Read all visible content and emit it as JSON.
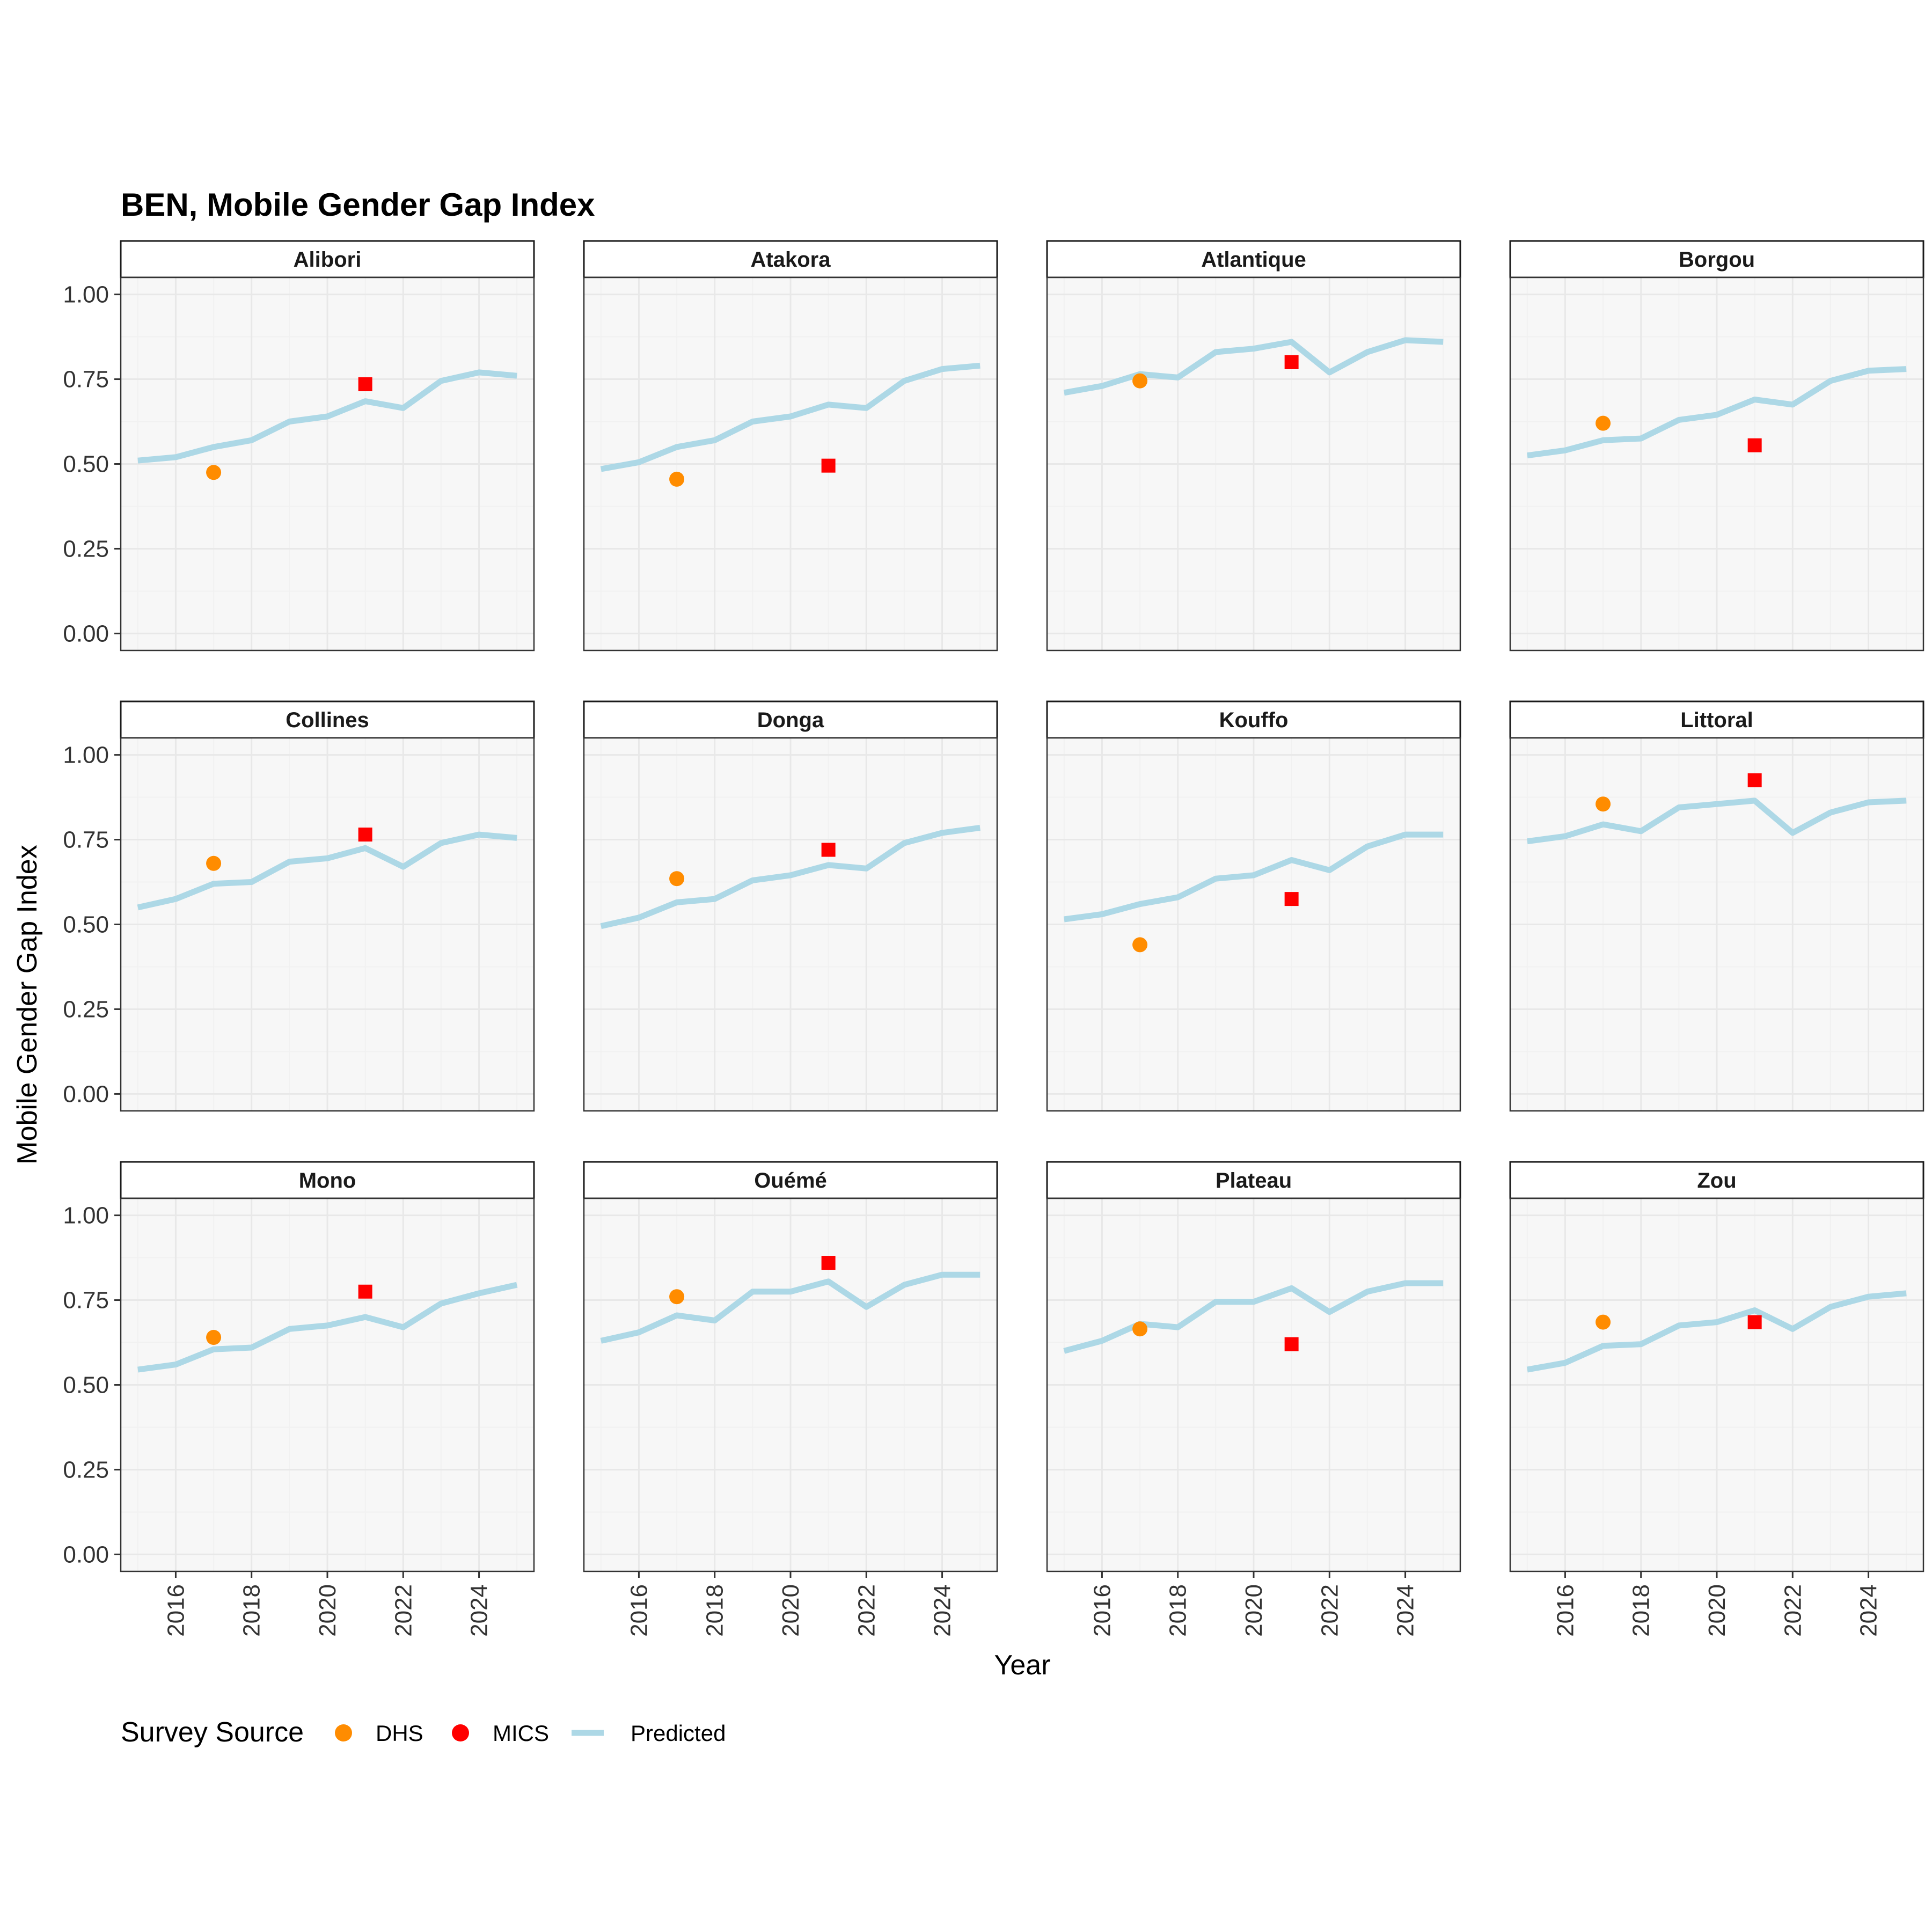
{
  "chart_data": {
    "type": "line",
    "title": "BEN, Mobile Gender Gap Index",
    "xlabel": "Year",
    "ylabel": "Mobile Gender Gap Index",
    "xlim": [
      2014.55,
      2025.45
    ],
    "ylim": [
      -0.05,
      1.05
    ],
    "x_ticks": [
      2016,
      2018,
      2020,
      2022,
      2024
    ],
    "y_ticks": [
      0.0,
      0.25,
      0.5,
      0.75,
      1.0
    ],
    "y_tick_labels": [
      "0.00",
      "0.25",
      "0.50",
      "0.75",
      "1.00"
    ],
    "grid": true,
    "facet_layout": {
      "rows": 3,
      "cols": 4
    },
    "legend": {
      "title": "Survey Source",
      "position": "bottom",
      "entries": [
        {
          "label": "DHS",
          "color": "#FF8C00",
          "shape": "circle"
        },
        {
          "label": "MICS",
          "color": "#FF0000",
          "shape": "square"
        },
        {
          "label": "Predicted",
          "color": "#ADD8E6",
          "shape": "line"
        }
      ]
    },
    "x": [
      2015,
      2016,
      2017,
      2018,
      2019,
      2020,
      2021,
      2022,
      2023,
      2024,
      2025
    ],
    "panels": [
      {
        "name": "Alibori",
        "predicted": [
          0.51,
          0.52,
          0.55,
          0.57,
          0.625,
          0.64,
          0.685,
          0.665,
          0.745,
          0.77,
          0.76
        ],
        "dhs": {
          "x": 2017,
          "y": 0.475
        },
        "mics": {
          "x": 2021,
          "y": 0.735
        }
      },
      {
        "name": "Atakora",
        "predicted": [
          0.485,
          0.505,
          0.55,
          0.57,
          0.625,
          0.64,
          0.675,
          0.665,
          0.745,
          0.78,
          0.79
        ],
        "dhs": {
          "x": 2017,
          "y": 0.455
        },
        "mics": {
          "x": 2021,
          "y": 0.495
        }
      },
      {
        "name": "Atlantique",
        "predicted": [
          0.71,
          0.73,
          0.765,
          0.755,
          0.83,
          0.84,
          0.86,
          0.77,
          0.83,
          0.865,
          0.86
        ],
        "dhs": {
          "x": 2017,
          "y": 0.745
        },
        "mics": {
          "x": 2021,
          "y": 0.8
        }
      },
      {
        "name": "Borgou",
        "predicted": [
          0.525,
          0.54,
          0.57,
          0.575,
          0.63,
          0.645,
          0.69,
          0.675,
          0.745,
          0.775,
          0.78
        ],
        "dhs": {
          "x": 2017,
          "y": 0.62
        },
        "mics": {
          "x": 2021,
          "y": 0.555
        }
      },
      {
        "name": "Collines",
        "predicted": [
          0.55,
          0.575,
          0.62,
          0.625,
          0.685,
          0.695,
          0.725,
          0.67,
          0.74,
          0.765,
          0.755
        ],
        "dhs": {
          "x": 2017,
          "y": 0.68
        },
        "mics": {
          "x": 2021,
          "y": 0.765
        }
      },
      {
        "name": "Donga",
        "predicted": [
          0.495,
          0.52,
          0.565,
          0.575,
          0.63,
          0.645,
          0.675,
          0.665,
          0.74,
          0.77,
          0.785
        ],
        "dhs": {
          "x": 2017,
          "y": 0.635
        },
        "mics": {
          "x": 2021,
          "y": 0.72
        }
      },
      {
        "name": "Kouffo",
        "predicted": [
          0.515,
          0.53,
          0.56,
          0.58,
          0.635,
          0.645,
          0.69,
          0.66,
          0.73,
          0.765,
          0.765
        ],
        "dhs": {
          "x": 2017,
          "y": 0.44
        },
        "mics": {
          "x": 2021,
          "y": 0.575
        }
      },
      {
        "name": "Littoral",
        "predicted": [
          0.745,
          0.76,
          0.795,
          0.775,
          0.845,
          0.855,
          0.865,
          0.77,
          0.83,
          0.86,
          0.865
        ],
        "dhs": {
          "x": 2017,
          "y": 0.855
        },
        "mics": {
          "x": 2021,
          "y": 0.925
        }
      },
      {
        "name": "Mono",
        "predicted": [
          0.545,
          0.56,
          0.605,
          0.61,
          0.665,
          0.675,
          0.7,
          0.67,
          0.74,
          0.77,
          0.795
        ],
        "dhs": {
          "x": 2017,
          "y": 0.64
        },
        "mics": {
          "x": 2021,
          "y": 0.775
        }
      },
      {
        "name": "Ouémé",
        "predicted": [
          0.63,
          0.655,
          0.705,
          0.69,
          0.775,
          0.775,
          0.805,
          0.73,
          0.795,
          0.825,
          0.825
        ],
        "dhs": {
          "x": 2017,
          "y": 0.76
        },
        "mics": {
          "x": 2021,
          "y": 0.86
        }
      },
      {
        "name": "Plateau",
        "predicted": [
          0.6,
          0.63,
          0.68,
          0.67,
          0.745,
          0.745,
          0.785,
          0.715,
          0.775,
          0.8,
          0.8
        ],
        "dhs": {
          "x": 2017,
          "y": 0.665
        },
        "mics": {
          "x": 2021,
          "y": 0.62
        }
      },
      {
        "name": "Zou",
        "predicted": [
          0.545,
          0.565,
          0.615,
          0.62,
          0.675,
          0.685,
          0.72,
          0.665,
          0.73,
          0.76,
          0.77
        ],
        "dhs": {
          "x": 2017,
          "y": 0.685
        },
        "mics": {
          "x": 2021,
          "y": 0.685
        }
      }
    ]
  }
}
